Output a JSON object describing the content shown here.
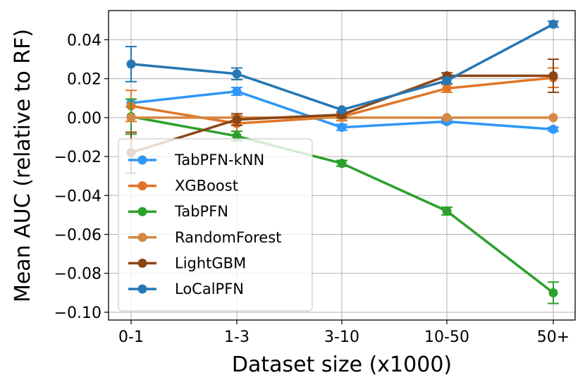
{
  "chart_data": {
    "type": "line",
    "title": "",
    "xlabel": "Dataset size (x1000)",
    "ylabel": "Mean AUC (relative to RF)",
    "categories": [
      "0-1",
      "1-3",
      "3-10",
      "10-50",
      "50+"
    ],
    "ylim": [
      -0.104,
      0.055
    ],
    "yticks": [
      -0.1,
      -0.08,
      -0.06,
      -0.04,
      -0.02,
      0.0,
      0.02,
      0.04
    ],
    "ytick_labels": [
      "−0.10",
      "−0.08",
      "−0.06",
      "−0.04",
      "−0.02",
      "0.00",
      "0.02",
      "0.04"
    ],
    "grid": true,
    "legend_position": "lower-left",
    "series": [
      {
        "name": "TabPFN-kNN",
        "color": "#2e97f7",
        "values": [
          0.0075,
          0.0135,
          -0.005,
          -0.002,
          -0.006
        ],
        "err": [
          0.002,
          0.002,
          0.0015,
          0.001,
          0.001
        ]
      },
      {
        "name": "XGBoost",
        "color": "#e07528",
        "values": [
          0.006,
          -0.003,
          0.0005,
          0.015,
          0.0205
        ],
        "err": [
          0.008,
          0.004,
          0.002,
          0.002,
          0.005
        ]
      },
      {
        "name": "TabPFN",
        "color": "#2ca02c",
        "values": [
          0.0005,
          -0.0095,
          -0.0235,
          -0.048,
          -0.09
        ],
        "err": [
          0.009,
          0.0025,
          0.0015,
          0.002,
          0.0055
        ]
      },
      {
        "name": "RandomForest",
        "color": "#d58942",
        "values": [
          0.0,
          0.0,
          0.0,
          0.0,
          0.0
        ],
        "err": [
          0,
          0,
          0,
          0,
          0
        ]
      },
      {
        "name": "LightGBM",
        "color": "#8b4513",
        "values": [
          -0.018,
          -0.001,
          0.0015,
          0.0215,
          0.0215
        ],
        "err": [
          0.0105,
          0.003,
          0.0015,
          0.0015,
          0.0085
        ]
      },
      {
        "name": "LoCalPFN",
        "color": "#2677b4",
        "values": [
          0.0275,
          0.0225,
          0.004,
          0.019,
          0.048
        ],
        "err": [
          0.009,
          0.003,
          0.001,
          0.0015,
          0.0015
        ]
      }
    ]
  }
}
